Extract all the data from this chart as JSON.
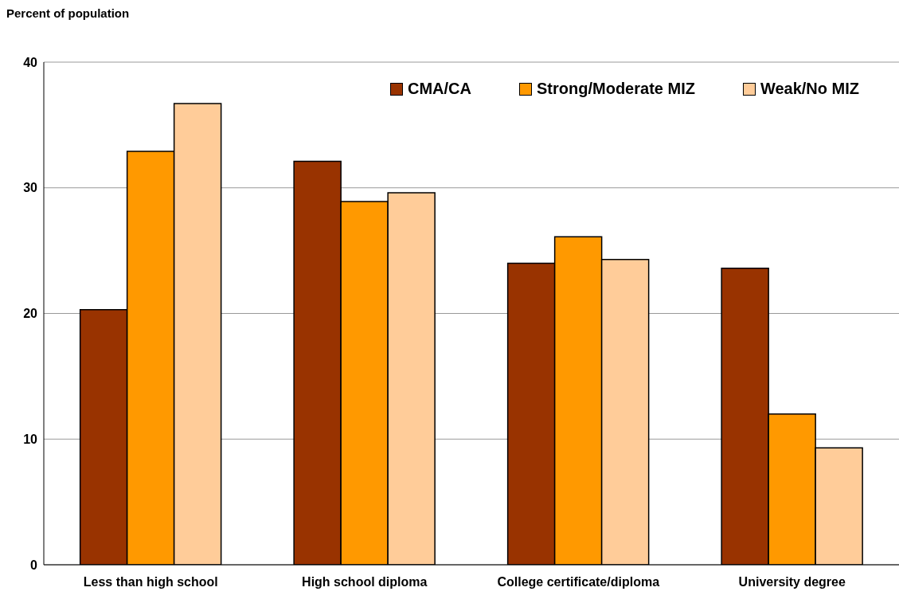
{
  "chart_data": {
    "type": "bar",
    "ylabel": "Percent of population",
    "categories": [
      "Less than high school",
      "High school diploma",
      "College certificate/diploma",
      "University degree"
    ],
    "series": [
      {
        "name": "CMA/CA",
        "color": "#993300",
        "values": [
          20.3,
          32.1,
          24.0,
          23.6
        ]
      },
      {
        "name": "Strong/Moderate MIZ",
        "color": "#ff9900",
        "values": [
          32.9,
          28.9,
          26.1,
          12.0
        ]
      },
      {
        "name": "Weak/No MIZ",
        "color": "#ffcc99",
        "values": [
          36.7,
          29.6,
          24.3,
          9.3
        ]
      }
    ],
    "ylim": [
      0,
      40
    ],
    "yticks": [
      0,
      10,
      20,
      30,
      40
    ],
    "grid": "y",
    "legend": "top right"
  }
}
